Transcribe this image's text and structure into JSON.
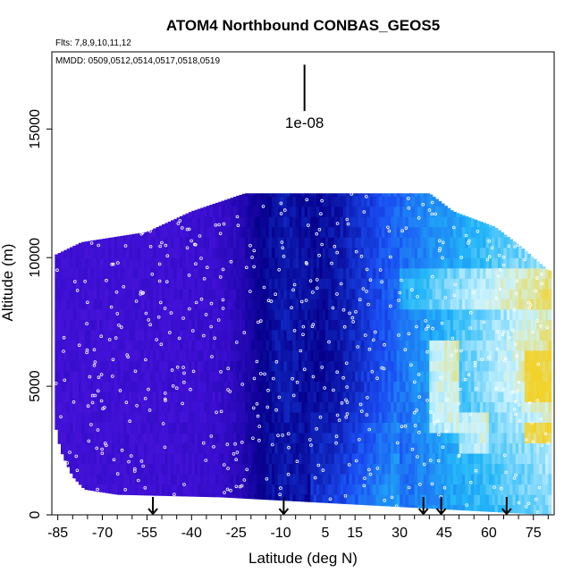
{
  "chart_data": {
    "type": "heatmap",
    "title": "ATOM4 Northbound CONBAS_GEOS5",
    "flights_label": "Flts: 7,8,9,10,11,12",
    "dates_label": "MMDD: 0509,0512,0514,0517,0518,0519",
    "xlabel": "Latitude (deg N)",
    "ylabel": "Altitude (m)",
    "xlim": [
      -87,
      82
    ],
    "ylim": [
      0,
      18000
    ],
    "x_ticks": [
      -85,
      -70,
      -55,
      -40,
      -25,
      -10,
      5,
      15,
      30,
      45,
      60,
      75
    ],
    "x_tick_labels": [
      "-85",
      "-70",
      "-55",
      "-40",
      "-25",
      "-10",
      "5",
      "15",
      "30",
      "45",
      "60",
      "75"
    ],
    "x_minor_ticks": [
      -80,
      -75,
      -65,
      -60,
      -50,
      -45,
      -35,
      -30,
      -20,
      -15,
      -5,
      0,
      10,
      20,
      25,
      35,
      40,
      50,
      55,
      65,
      70,
      80
    ],
    "y_ticks": [
      0,
      5000,
      10000,
      15000
    ],
    "y_tick_labels": [
      "0",
      "5000",
      "10000",
      "15000"
    ],
    "scale_bar": {
      "label": "1e-08",
      "y_from": 15700,
      "y_to": 17500,
      "x": -2
    },
    "flight_markers_lat": [
      -53,
      -9,
      38,
      44,
      66
    ],
    "colormap": [
      {
        "value": 0.0,
        "color": "#7a2ae6"
      },
      {
        "value": 0.25,
        "color": "#3f10d6"
      },
      {
        "value": 0.45,
        "color": "#06008c"
      },
      {
        "value": 0.6,
        "color": "#1a4cf2"
      },
      {
        "value": 0.75,
        "color": "#22b6f8"
      },
      {
        "value": 0.88,
        "color": "#cdf4ff"
      },
      {
        "value": 1.0,
        "color": "#f2d22b"
      }
    ],
    "curtain_top_profile": [
      {
        "lat": -86,
        "top": 10100
      },
      {
        "lat": -77,
        "top": 10600
      },
      {
        "lat": -55,
        "top": 11000
      },
      {
        "lat": -40,
        "top": 11800
      },
      {
        "lat": -22,
        "top": 12500
      },
      {
        "lat": 40,
        "top": 12500
      },
      {
        "lat": 48,
        "top": 11800
      },
      {
        "lat": 62,
        "top": 11200
      },
      {
        "lat": 70,
        "top": 10500
      },
      {
        "lat": 80,
        "top": 9500
      }
    ],
    "curtain_bottom_profile": [
      {
        "lat": -86,
        "bottom": 3600
      },
      {
        "lat": -84,
        "bottom": 2500
      },
      {
        "lat": -80,
        "bottom": 1500
      },
      {
        "lat": -76,
        "bottom": 1000
      },
      {
        "lat": -65,
        "bottom": 800
      },
      {
        "lat": -30,
        "bottom": 700
      },
      {
        "lat": 82,
        "bottom": 0
      }
    ]
  }
}
